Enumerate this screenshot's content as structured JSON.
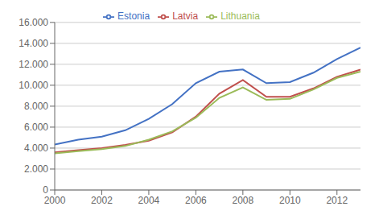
{
  "chart_data": {
    "type": "line",
    "x": [
      2000,
      2001,
      2002,
      2003,
      2004,
      2005,
      2006,
      2007,
      2008,
      2009,
      2010,
      2011,
      2012,
      2013
    ],
    "series": [
      {
        "name": "Estonia",
        "color": "#4472C4",
        "values": [
          4350,
          4800,
          5100,
          5700,
          6800,
          8200,
          10200,
          11300,
          11500,
          10200,
          10300,
          11200,
          12500,
          13600
        ]
      },
      {
        "name": "Latvia",
        "color": "#C0504D",
        "values": [
          3600,
          3800,
          4000,
          4300,
          4700,
          5500,
          7000,
          9200,
          10500,
          8900,
          8900,
          9700,
          10800,
          11500
        ]
      },
      {
        "name": "Lithuania",
        "color": "#9BBB59",
        "values": [
          3500,
          3700,
          3900,
          4200,
          4800,
          5600,
          6900,
          8800,
          9800,
          8600,
          8700,
          9600,
          10700,
          11300
        ]
      }
    ],
    "xlim": [
      2000,
      2013
    ],
    "xticks": [
      2000,
      2002,
      2004,
      2006,
      2008,
      2010,
      2012
    ],
    "ylim": [
      0,
      16000
    ],
    "yticks": [
      0,
      {
        "value": 2000,
        "label": "2.000"
      },
      {
        "value": 4000,
        "label": "4.000"
      },
      {
        "value": 6000,
        "label": "6.000"
      },
      {
        "value": 8000,
        "label": "8.000"
      },
      {
        "value": 10000,
        "label": "10.000"
      },
      {
        "value": 12000,
        "label": "12.000"
      },
      {
        "value": 14000,
        "label": "14.000"
      },
      {
        "value": 16000,
        "label": "16.000"
      }
    ],
    "grid": true,
    "legend": "top"
  }
}
